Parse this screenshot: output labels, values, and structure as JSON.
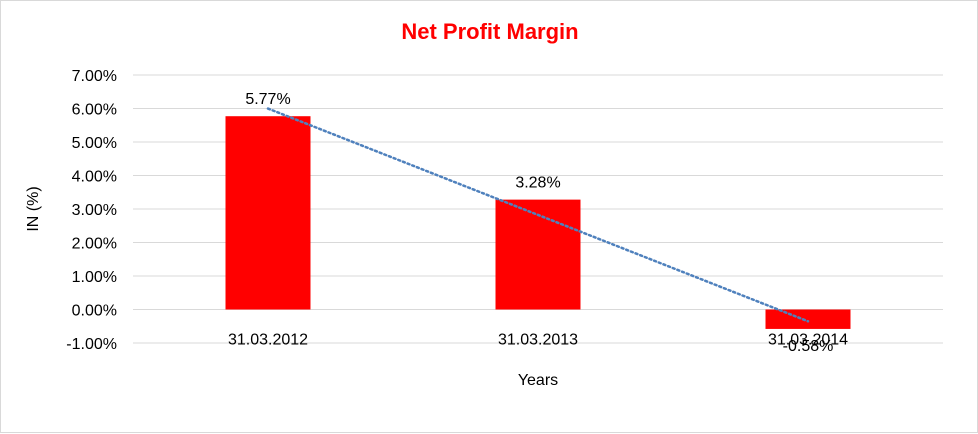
{
  "chart_data": {
    "type": "bar",
    "title": "Net Profit Margin",
    "xlabel": "Years",
    "ylabel": "IN (%)",
    "categories": [
      "31.03.2012",
      "31.03.2013",
      "31.03.2014"
    ],
    "values": [
      5.77,
      3.28,
      -0.58
    ],
    "data_labels": [
      "5.77%",
      "3.28%",
      "-0.58%"
    ],
    "y_ticks": [
      -1,
      0,
      1,
      2,
      3,
      4,
      5,
      6,
      7
    ],
    "y_tick_labels": [
      "-1.00%",
      "0.00%",
      "1.00%",
      "2.00%",
      "3.00%",
      "4.00%",
      "5.00%",
      "6.00%",
      "7.00%"
    ],
    "ylim": [
      -1,
      7
    ],
    "grid": true,
    "trendline": "linear",
    "colors": {
      "bar": "#ff0000",
      "title": "#ff0000",
      "trendline": "#4f81bd",
      "grid": "#d9d9d9"
    }
  }
}
